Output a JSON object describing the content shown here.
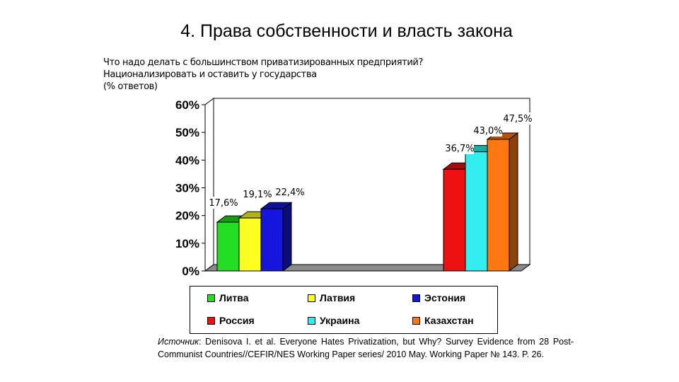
{
  "slide": {
    "title": "4. Права собственности и власть закона",
    "subtitle_lines": [
      "Что надо делать с большинством приватизированных предприятий?",
      "Национализировать и оставить у государства",
      "(% ответов)"
    ]
  },
  "chart_data": {
    "type": "bar",
    "bar_style": "3d",
    "y_tick_labels": [
      "0%",
      "10%",
      "20%",
      "30%",
      "40%",
      "50%",
      "60%"
    ],
    "ylim": [
      0,
      60
    ],
    "grid": false,
    "legend_position": "bottom",
    "groups": [
      [
        {
          "name": "Литва",
          "value": 17.6,
          "label": "17,6%"
        },
        {
          "name": "Латвия",
          "value": 19.1,
          "label": "19,1%"
        },
        {
          "name": "Эстония",
          "value": 22.4,
          "label": "22,4%"
        }
      ],
      [
        {
          "name": "Россия",
          "value": 36.7,
          "label": "36,7%"
        },
        {
          "name": "Украина",
          "value": 43.0,
          "label": "43,0%"
        },
        {
          "name": "Казахстан",
          "value": 47.5,
          "label": "47,5%"
        }
      ]
    ],
    "colors": {
      "Литва": "#22dd22",
      "Латвия": "#ffff22",
      "Эстония": "#1515dd",
      "Россия": "#ee1111",
      "Украина": "#33eeee",
      "Казахстан": "#ff7711"
    },
    "legend": [
      "Литва",
      "Латвия",
      "Эстония",
      "Россия",
      "Украина",
      "Казахстан"
    ]
  },
  "source": {
    "label": "Источник",
    "text": ": Denisova I. et al. Everyone Hates Privatization, but Why? Survey Evidence from 28 Post-Communist Countries//CEFIR/NES Working Paper series/ 2010 May. Working Paper № 143. P. 26."
  }
}
